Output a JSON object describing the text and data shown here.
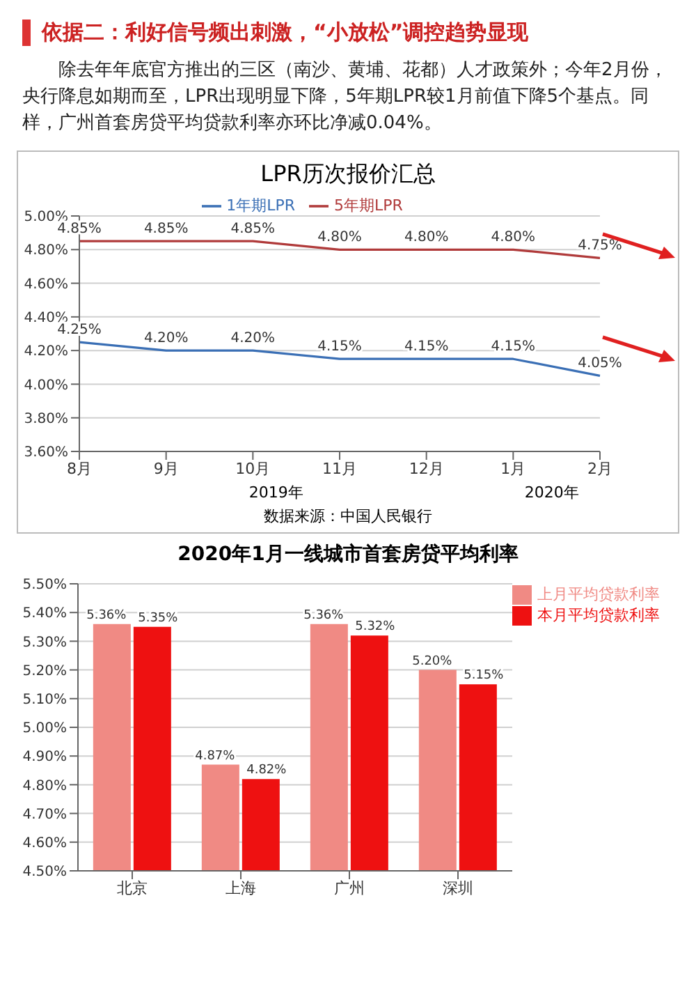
{
  "chart_data": [
    {
      "type": "other",
      "title": "依据二：利好信号频出刺激，“小放松”调控趋势显现",
      "annotations": [
        "除去年年底官方推出的三区（南沙、黄埔、花都）人才政策外；今年2月份，央行降息如期而至，LPR出现明显下降，5年期LPR较1月前值下降5个基点。同样，广州首套房贷平均贷款利率亦环比净减0.04%。"
      ]
    },
    {
      "type": "line",
      "title": "LPR历次报价汇总",
      "categories": [
        "8月",
        "9月",
        "10月",
        "11月",
        "12月",
        "1月",
        "2月"
      ],
      "series": [
        {
          "name": "1年期LPR",
          "color": "#3a6fb5",
          "values": [
            4.25,
            4.2,
            4.2,
            4.15,
            4.15,
            4.15,
            4.05
          ],
          "value_labels": [
            "4.25%",
            "4.20%",
            "4.20%",
            "4.15%",
            "4.15%",
            "4.15%",
            "4.05%"
          ]
        },
        {
          "name": "5年期LPR",
          "color": "#b03a3a",
          "values": [
            4.85,
            4.85,
            4.85,
            4.8,
            4.8,
            4.8,
            4.75
          ],
          "value_labels": [
            "4.85%",
            "4.85%",
            "4.85%",
            "4.80%",
            "4.80%",
            "4.80%",
            "4.75%"
          ]
        }
      ],
      "ylim": [
        3.6,
        5.0
      ],
      "yticks": [
        {
          "value": 3.6,
          "label": "3.60%"
        },
        {
          "value": 3.8,
          "label": "3.80%"
        },
        {
          "value": 4.0,
          "label": "4.00%"
        },
        {
          "value": 4.2,
          "label": "4.20%"
        },
        {
          "value": 4.4,
          "label": "4.40%"
        },
        {
          "value": 4.6,
          "label": "4.60%"
        },
        {
          "value": 4.8,
          "label": "4.80%"
        },
        {
          "value": 5.0,
          "label": "5.00%"
        }
      ],
      "grid": "y",
      "legend": "top",
      "marker": "none",
      "line_style": "solid",
      "annotations": [
        "2019年",
        "2020年",
        "数据来源：中国人民银行"
      ]
    },
    {
      "type": "bar",
      "title": "2020年1月一线城市首套房贷平均利率",
      "categories": [
        "北京",
        "上海",
        "广州",
        "深圳"
      ],
      "series": [
        {
          "name": "上月平均贷款利率",
          "color": "#f08a84",
          "values": [
            5.36,
            4.87,
            5.36,
            5.2
          ],
          "value_labels": [
            "5.36%",
            "4.87%",
            "5.36%",
            "5.20%"
          ]
        },
        {
          "name": "本月平均贷款利率",
          "color": "#ee1111",
          "values": [
            5.35,
            4.82,
            5.32,
            5.15
          ],
          "value_labels": [
            "5.35%",
            "4.82%",
            "5.32%",
            "5.15%"
          ]
        }
      ],
      "ylim": [
        4.5,
        5.5
      ],
      "yticks": [
        {
          "value": 4.5,
          "label": "4.50%"
        },
        {
          "value": 4.6,
          "label": "4.60%"
        },
        {
          "value": 4.7,
          "label": "4.70%"
        },
        {
          "value": 4.8,
          "label": "4.80%"
        },
        {
          "value": 4.9,
          "label": "4.90%"
        },
        {
          "value": 5.0,
          "label": "5.00%"
        },
        {
          "value": 5.1,
          "label": "5.10%"
        },
        {
          "value": 5.2,
          "label": "5.20%"
        },
        {
          "value": 5.3,
          "label": "5.30%"
        },
        {
          "value": 5.4,
          "label": "5.40%"
        },
        {
          "value": 5.5,
          "label": "5.50%"
        }
      ],
      "grid": "y",
      "legend": "right"
    }
  ]
}
